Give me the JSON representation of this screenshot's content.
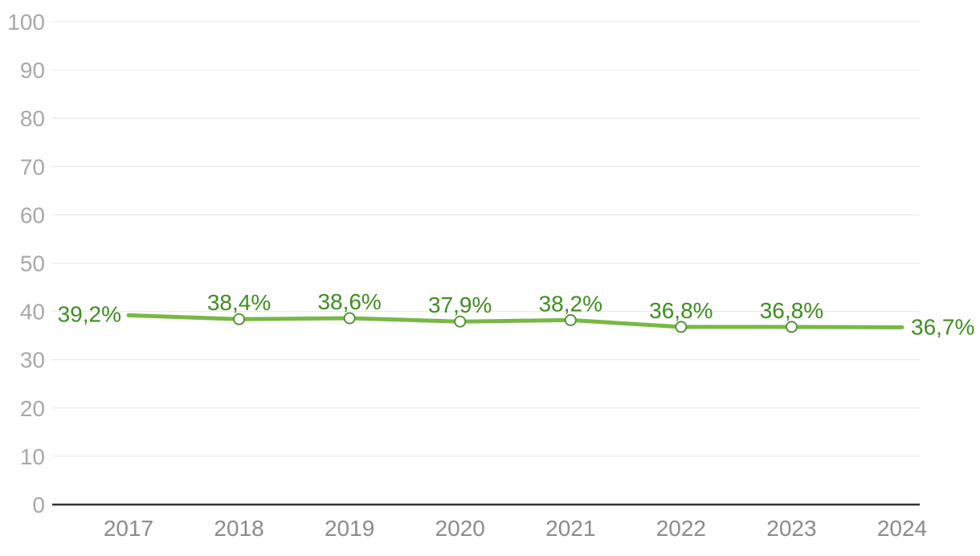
{
  "chart_data": {
    "type": "line",
    "title": "",
    "xlabel": "",
    "ylabel": "",
    "categories": [
      "2017",
      "2018",
      "2019",
      "2020",
      "2021",
      "2022",
      "2023",
      "2024"
    ],
    "values": [
      39.2,
      38.4,
      38.6,
      37.9,
      38.2,
      36.8,
      36.8,
      36.7
    ],
    "point_labels": [
      "39,2%",
      "38,4%",
      "38,6%",
      "37,9%",
      "38,2%",
      "36,8%",
      "36,8%",
      "36,7%"
    ],
    "label_positions": [
      "left",
      "above",
      "above",
      "above",
      "above",
      "above",
      "above",
      "right"
    ],
    "marker_indices": [
      1,
      2,
      3,
      4,
      5,
      6
    ],
    "ylim": [
      0,
      100
    ],
    "yticks": [
      0,
      10,
      20,
      30,
      40,
      50,
      60,
      70,
      80,
      90,
      100
    ],
    "grid": true,
    "legend": false,
    "colors": {
      "line": "#78b845",
      "marker_stroke": "#4b8c2d",
      "marker_fill": "#ffffff",
      "value_label": "#3e8e20",
      "axis_line": "#333333",
      "gridline": "#e6e6e6",
      "y_tick_label": "#a8a8a8",
      "x_tick_label": "#8b8b8b",
      "background": "#ffffff"
    }
  }
}
